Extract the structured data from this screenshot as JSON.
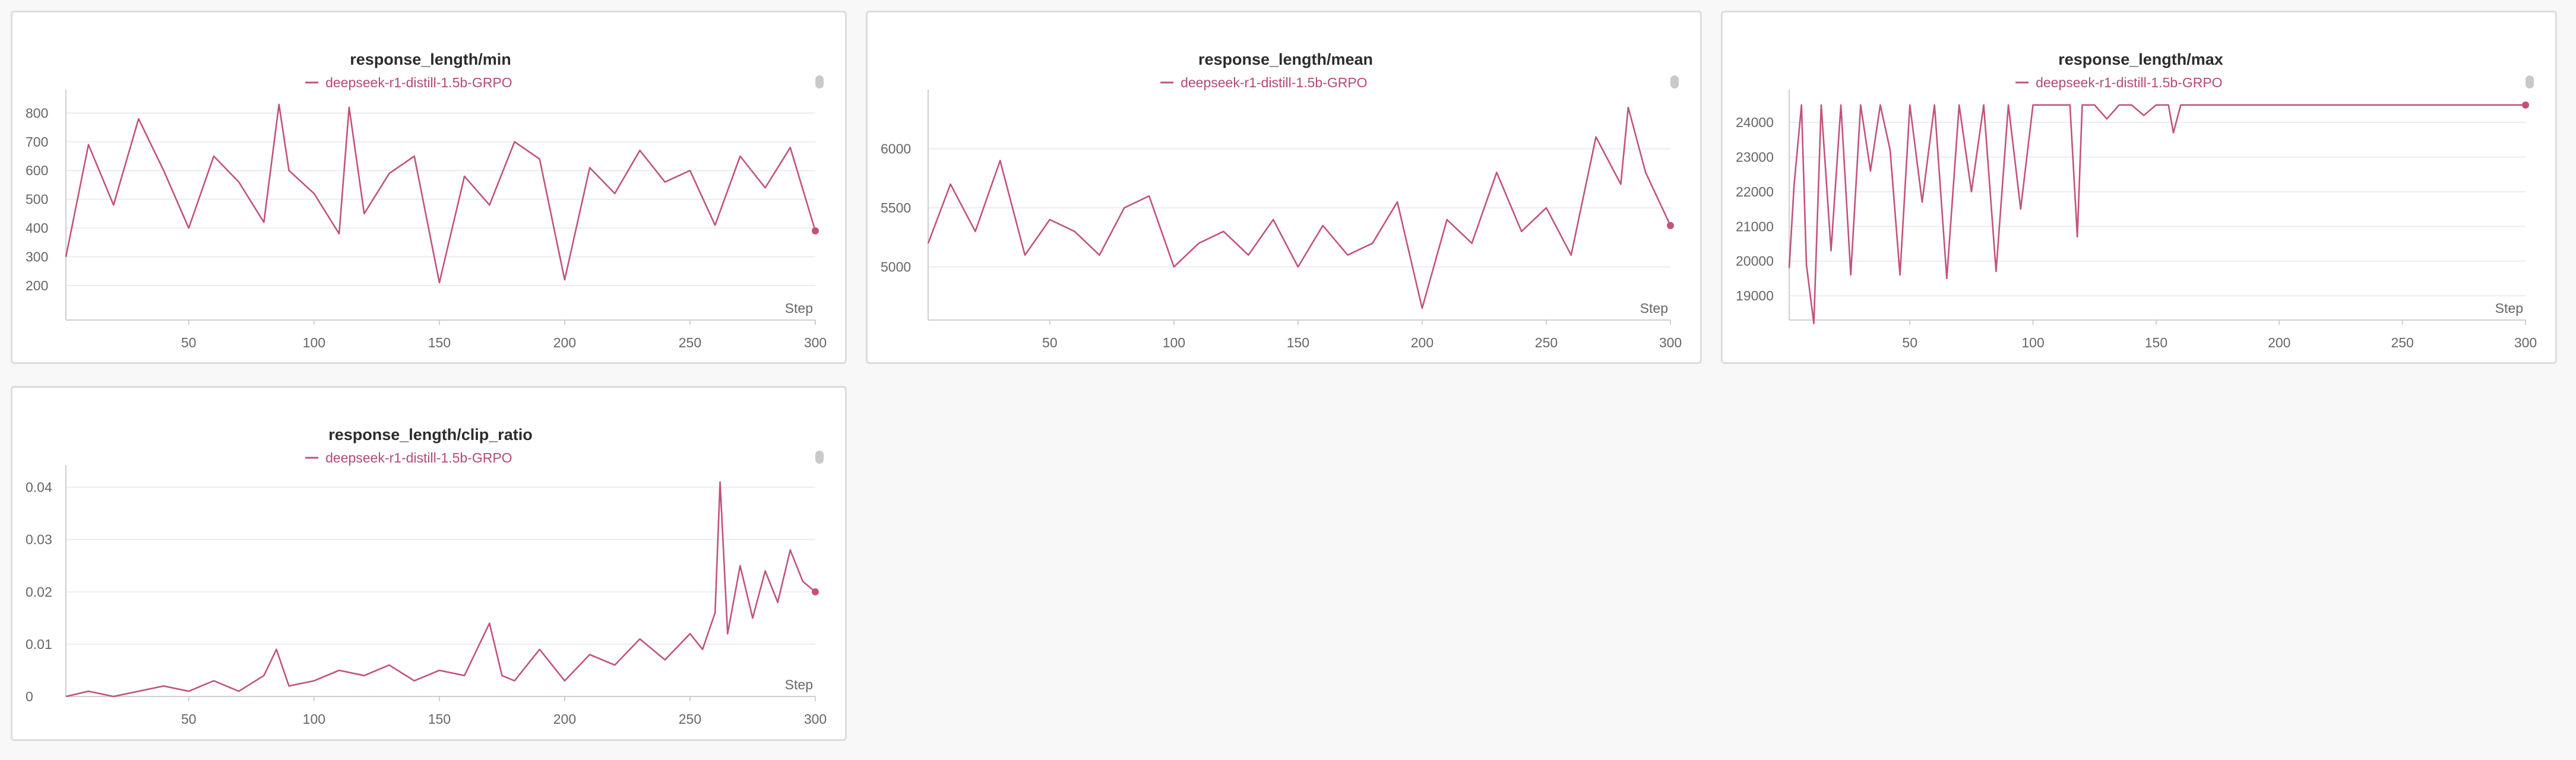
{
  "colors": {
    "series": "#c2527c",
    "legend_text": "#b34a75"
  },
  "chart_data": [
    {
      "type": "line",
      "title": "response_length/min",
      "legend": [
        "deepseek-r1-distill-1.5b-GRPO"
      ],
      "legend_placement": "top-center",
      "xlabel": "Step",
      "xlim": [
        1,
        300
      ],
      "ylim": [
        80,
        840
      ],
      "xticks": [
        50,
        100,
        150,
        200,
        250,
        300
      ],
      "yticks": [
        200,
        300,
        400,
        500,
        600,
        700,
        800
      ],
      "grid": true,
      "series": [
        {
          "name": "deepseek-r1-distill-1.5b-GRPO",
          "x": [
            1,
            10,
            20,
            30,
            40,
            50,
            60,
            70,
            80,
            86,
            90,
            100,
            110,
            114,
            120,
            130,
            140,
            150,
            160,
            170,
            180,
            190,
            200,
            210,
            220,
            230,
            240,
            250,
            260,
            270,
            280,
            290,
            300
          ],
          "y": [
            300,
            690,
            480,
            780,
            600,
            400,
            650,
            560,
            420,
            830,
            600,
            520,
            380,
            820,
            450,
            590,
            650,
            210,
            580,
            480,
            700,
            640,
            220,
            610,
            520,
            670,
            560,
            600,
            410,
            650,
            540,
            680,
            390
          ]
        }
      ]
    },
    {
      "type": "line",
      "title": "response_length/mean",
      "legend": [
        "deepseek-r1-distill-1.5b-GRPO"
      ],
      "legend_placement": "top-center",
      "xlabel": "Step",
      "xlim": [
        1,
        300
      ],
      "ylim": [
        4550,
        6400
      ],
      "xticks": [
        50,
        100,
        150,
        200,
        250,
        300
      ],
      "yticks": [
        5000,
        5500,
        6000
      ],
      "grid": true,
      "series": [
        {
          "name": "deepseek-r1-distill-1.5b-GRPO",
          "x": [
            1,
            10,
            20,
            30,
            40,
            50,
            60,
            70,
            80,
            90,
            100,
            110,
            120,
            130,
            140,
            150,
            160,
            170,
            180,
            190,
            200,
            210,
            220,
            230,
            240,
            250,
            260,
            270,
            280,
            283,
            290,
            300
          ],
          "y": [
            5200,
            5700,
            5300,
            5900,
            5100,
            5400,
            5300,
            5100,
            5500,
            5600,
            5000,
            5200,
            5300,
            5100,
            5400,
            5000,
            5350,
            5100,
            5200,
            5550,
            4650,
            5400,
            5200,
            5800,
            5300,
            5500,
            5100,
            6100,
            5700,
            6350,
            5800,
            5350
          ]
        }
      ]
    },
    {
      "type": "line",
      "title": "response_length/max",
      "legend": [
        "deepseek-r1-distill-1.5b-GRPO"
      ],
      "legend_placement": "top-center",
      "xlabel": "Step",
      "xlim": [
        1,
        300
      ],
      "ylim": [
        18300,
        24600
      ],
      "xticks": [
        50,
        100,
        150,
        200,
        250,
        300
      ],
      "yticks": [
        19000,
        20000,
        21000,
        22000,
        23000,
        24000
      ],
      "grid": true,
      "series": [
        {
          "name": "deepseek-r1-distill-1.5b-GRPO",
          "x": [
            1,
            3,
            6,
            8,
            11,
            14,
            18,
            22,
            26,
            30,
            34,
            38,
            42,
            46,
            50,
            55,
            60,
            65,
            70,
            75,
            80,
            85,
            90,
            95,
            100,
            105,
            110,
            115,
            118,
            120,
            125,
            130,
            135,
            140,
            145,
            150,
            155,
            157,
            160,
            170,
            200,
            250,
            300
          ],
          "y": [
            19800,
            22200,
            24500,
            19900,
            18200,
            24500,
            20300,
            24500,
            19600,
            24500,
            22600,
            24500,
            23200,
            19600,
            24500,
            21700,
            24500,
            19500,
            24500,
            22000,
            24500,
            19700,
            24500,
            21500,
            24500,
            24500,
            24500,
            24500,
            20700,
            24500,
            24500,
            24100,
            24500,
            24500,
            24200,
            24500,
            24500,
            23700,
            24500,
            24500,
            24500,
            24500,
            24500
          ]
        }
      ]
    },
    {
      "type": "line",
      "title": "response_length/clip_ratio",
      "legend": [
        "deepseek-r1-distill-1.5b-GRPO"
      ],
      "legend_placement": "top-center",
      "xlabel": "Step",
      "xlim": [
        1,
        300
      ],
      "ylim": [
        0,
        0.042
      ],
      "xticks": [
        50,
        100,
        150,
        200,
        250,
        300
      ],
      "yticks": [
        0,
        0.01,
        0.02,
        0.03,
        0.04
      ],
      "ytick_labels": [
        "0",
        "0.01",
        "0.02",
        "0.03",
        "0.04"
      ],
      "grid": true,
      "series": [
        {
          "name": "deepseek-r1-distill-1.5b-GRPO",
          "x": [
            1,
            10,
            20,
            30,
            40,
            50,
            60,
            70,
            80,
            85,
            90,
            100,
            110,
            120,
            130,
            140,
            150,
            160,
            170,
            175,
            180,
            190,
            200,
            210,
            220,
            230,
            240,
            250,
            255,
            260,
            262,
            265,
            270,
            275,
            280,
            285,
            290,
            295,
            300
          ],
          "y": [
            0,
            0.001,
            0,
            0.001,
            0.002,
            0.001,
            0.003,
            0.001,
            0.004,
            0.009,
            0.002,
            0.003,
            0.005,
            0.004,
            0.006,
            0.003,
            0.005,
            0.004,
            0.014,
            0.004,
            0.003,
            0.009,
            0.003,
            0.008,
            0.006,
            0.011,
            0.007,
            0.012,
            0.009,
            0.016,
            0.041,
            0.012,
            0.025,
            0.015,
            0.024,
            0.018,
            0.028,
            0.022,
            0.02
          ]
        }
      ]
    }
  ]
}
